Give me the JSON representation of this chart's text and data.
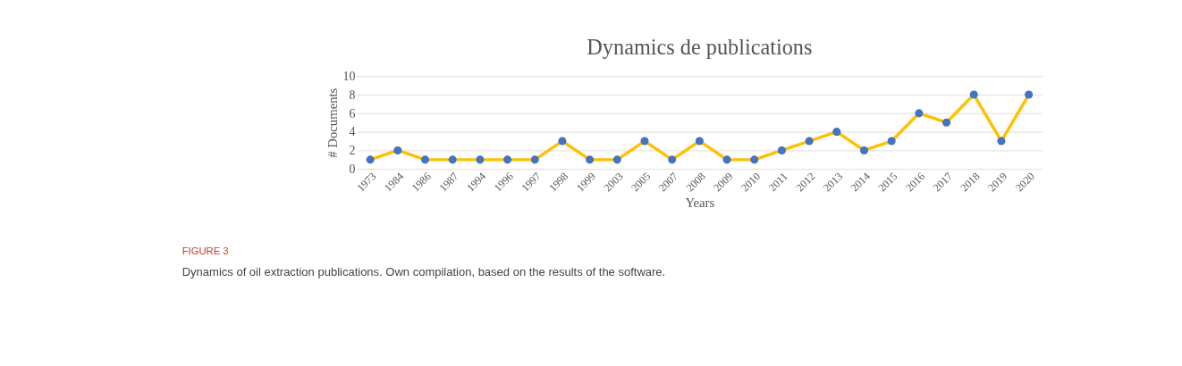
{
  "chart_data": {
    "type": "line",
    "title": "Dynamics de publications",
    "xlabel": "Years",
    "ylabel": "# Documents",
    "categories": [
      "1973",
      "1984",
      "1986",
      "1987",
      "1994",
      "1996",
      "1997",
      "1998",
      "1999",
      "2003",
      "2005",
      "2007",
      "2008",
      "2009",
      "2010",
      "2011",
      "2012",
      "2013",
      "2014",
      "2015",
      "2016",
      "2017",
      "2018",
      "2019",
      "2020"
    ],
    "series": [
      {
        "color": "#ffc000",
        "colors": [
          "#4472c4",
          "#4472c4",
          "#4472c4",
          "#4472c4",
          "#4472c4",
          "#4472c4",
          "#4472c4",
          "#4472c4",
          "#4472c4",
          "#4472c4",
          "#4472c4",
          "#4472c4",
          "#4472c4",
          "#4472c4",
          "#4472c4",
          "#4472c4",
          "#4472c4",
          "#4472c4",
          "#4472c4",
          "#4472c4",
          "#4472c4",
          "#4472c4",
          "#4472c4",
          "#4472c4",
          "#4472c4"
        ],
        "values": [
          1,
          2,
          1,
          1,
          1,
          1,
          1,
          3,
          1,
          1,
          3,
          1,
          3,
          1,
          1,
          2,
          3,
          4,
          2,
          3,
          6,
          5,
          8,
          3,
          8
        ]
      }
    ],
    "ylim": [
      0,
      10
    ],
    "yticks": [
      0,
      2,
      4,
      6,
      8,
      10
    ],
    "grid": "y",
    "marker": "circle",
    "line_style": "solid",
    "annotations": [
      "FIGURE 3",
      "Dynamics of oil extraction publications. Own compilation, based on the results of the software."
    ]
  }
}
